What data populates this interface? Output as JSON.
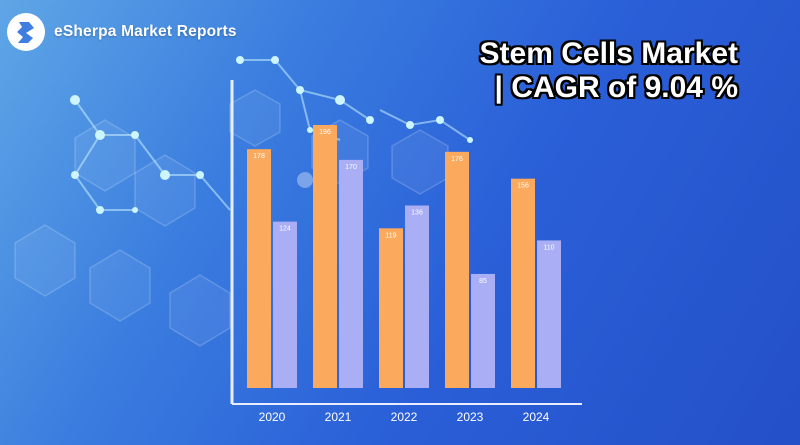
{
  "brand": {
    "name": "eSherpa Market Reports",
    "logo_icon": "esherpa-logo-icon"
  },
  "headline": {
    "line1": "Stem Cells Market",
    "line2": "| CAGR of 9.04 %"
  },
  "colors": {
    "series_a": "#fba95d",
    "series_b": "#a9aef5",
    "axis": "#e8eeff",
    "label": "#ffffff",
    "value_label": "#ffffff"
  },
  "chart_data": {
    "type": "bar",
    "categories": [
      "2020",
      "2021",
      "2022",
      "2023",
      "2024"
    ],
    "series": [
      {
        "values": [
          178,
          196,
          119,
          176,
          156
        ]
      },
      {
        "values": [
          124,
          170,
          136,
          85,
          110
        ]
      }
    ],
    "title": "Stem Cells Market | CAGR of 9.04 %",
    "xlabel": "",
    "ylabel": "",
    "ylim": [
      0,
      210
    ],
    "grid": false,
    "legend": "none"
  }
}
